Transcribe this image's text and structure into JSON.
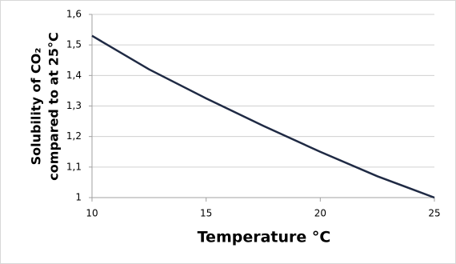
{
  "chart_data": {
    "type": "line",
    "xlabel": "Temperature °C",
    "ylabel_lines": [
      "Solubility of CO₂",
      "compared to at 25°C"
    ],
    "x": [
      10,
      12.5,
      15,
      17.5,
      20,
      22.5,
      25
    ],
    "series": [
      {
        "color": "#1f2a44",
        "values": [
          1.53,
          1.42,
          1.325,
          1.235,
          1.15,
          1.07,
          1.0
        ]
      }
    ],
    "xlim": [
      10,
      25
    ],
    "xticks": [
      10,
      15,
      20,
      25
    ],
    "ylim": [
      1,
      1.6
    ],
    "yticks": [
      1,
      {
        "value": 1.1,
        "label": "1,1"
      },
      {
        "value": 1.2,
        "label": "1,2"
      },
      {
        "value": 1.3,
        "label": "1,3"
      },
      {
        "value": 1.4,
        "label": "1,4"
      },
      {
        "value": 1.5,
        "label": "1,5"
      },
      {
        "value": 1.6,
        "label": "1,6"
      }
    ],
    "grid": true
  }
}
